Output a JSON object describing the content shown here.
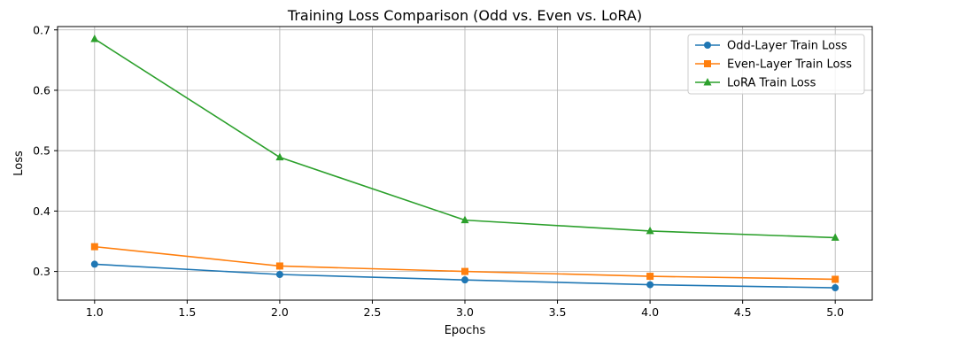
{
  "chart_data": {
    "type": "line",
    "title": "Training Loss Comparison (Odd vs. Even vs. LoRA)",
    "xlabel": "Epochs",
    "ylabel": "Loss",
    "x": [
      1,
      2,
      3,
      4,
      5
    ],
    "xlim": [
      0.8,
      5.2
    ],
    "ylim": [
      0.2525,
      0.7055
    ],
    "xticks": [
      "1.0",
      "1.5",
      "2.0",
      "2.5",
      "3.0",
      "3.5",
      "4.0",
      "4.5",
      "5.0"
    ],
    "xtick_values": [
      1.0,
      1.5,
      2.0,
      2.5,
      3.0,
      3.5,
      4.0,
      4.5,
      5.0
    ],
    "yticks": [
      "0.3",
      "0.4",
      "0.5",
      "0.6",
      "0.7"
    ],
    "ytick_values": [
      0.3,
      0.4,
      0.5,
      0.6,
      0.7
    ],
    "grid": true,
    "legend_position": "top-right",
    "series": [
      {
        "name": "Odd-Layer Train Loss",
        "values": [
          0.312,
          0.295,
          0.286,
          0.278,
          0.273
        ],
        "color": "#1f77b4",
        "marker": "circle"
      },
      {
        "name": "Even-Layer Train Loss",
        "values": [
          0.341,
          0.309,
          0.3,
          0.292,
          0.287
        ],
        "color": "#ff7f0e",
        "marker": "square"
      },
      {
        "name": "LoRA Train Loss",
        "values": [
          0.685,
          0.489,
          0.385,
          0.367,
          0.356
        ],
        "color": "#2ca02c",
        "marker": "triangle"
      }
    ]
  }
}
